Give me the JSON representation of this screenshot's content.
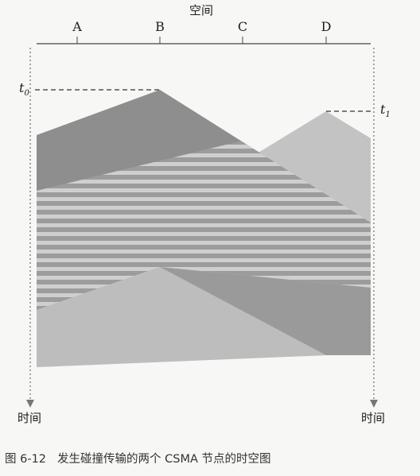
{
  "axis": {
    "space_label": "空间",
    "time_label_left": "时间",
    "time_label_right": "时间"
  },
  "nodes": [
    "A",
    "B",
    "C",
    "D"
  ],
  "markers": {
    "t0": "t",
    "t0_sub": "0",
    "t1": "t",
    "t1_sub": "1"
  },
  "caption": {
    "number": "图 6-12",
    "text": "发生碰撞传输的两个 CSMA 节点的时空图"
  },
  "colors": {
    "background": "#f7f7f5",
    "b_transmission": "#8e8e8e",
    "d_transmission": "#c3c3c3",
    "overlap_stripe_dark": "#9a9a9a",
    "overlap_stripe_light": "#cfcfcf",
    "line": "#444444"
  }
}
